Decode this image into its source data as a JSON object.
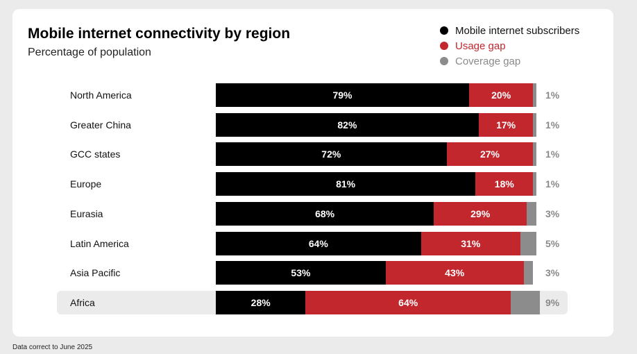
{
  "footnote": "Data correct to June 2025",
  "colors": {
    "subscribers": "#000000",
    "usage": "#c1272d",
    "coverage": "#8c8c8c"
  },
  "chart_data": {
    "type": "bar",
    "orientation": "horizontal",
    "stacked": true,
    "title": "Mobile internet connectivity by region",
    "subtitle": "Percentage of population",
    "highlighted_category": "Africa",
    "legend": [
      {
        "name": "Mobile internet subscribers",
        "color": "#000000",
        "text_color": "#111111"
      },
      {
        "name": "Usage gap",
        "color": "#c1272d",
        "text_color": "#c1272d"
      },
      {
        "name": "Coverage gap",
        "color": "#8c8c8c",
        "text_color": "#8a8a8a"
      }
    ],
    "categories": [
      "North America",
      "Greater China",
      "GCC states",
      "Europe",
      "Eurasia",
      "Latin America",
      "Asia Pacific",
      "Africa"
    ],
    "series": [
      {
        "name": "Mobile internet subscribers",
        "values": [
          79,
          82,
          72,
          81,
          68,
          64,
          53,
          28
        ],
        "labels": [
          "79%",
          "82%",
          "72%",
          "81%",
          "68%",
          "64%",
          "53%",
          "28%"
        ]
      },
      {
        "name": "Usage gap",
        "values": [
          20,
          17,
          27,
          18,
          29,
          31,
          43,
          64
        ],
        "labels": [
          "20%",
          "17%",
          "27%",
          "18%",
          "29%",
          "31%",
          "43%",
          "64%"
        ]
      },
      {
        "name": "Coverage gap",
        "values": [
          1,
          1,
          1,
          1,
          3,
          5,
          3,
          9
        ],
        "labels": [
          "1%",
          "1%",
          "1%",
          "1%",
          "3%",
          "5%",
          "3%",
          "9%"
        ]
      }
    ],
    "xlim": [
      0,
      100
    ]
  }
}
